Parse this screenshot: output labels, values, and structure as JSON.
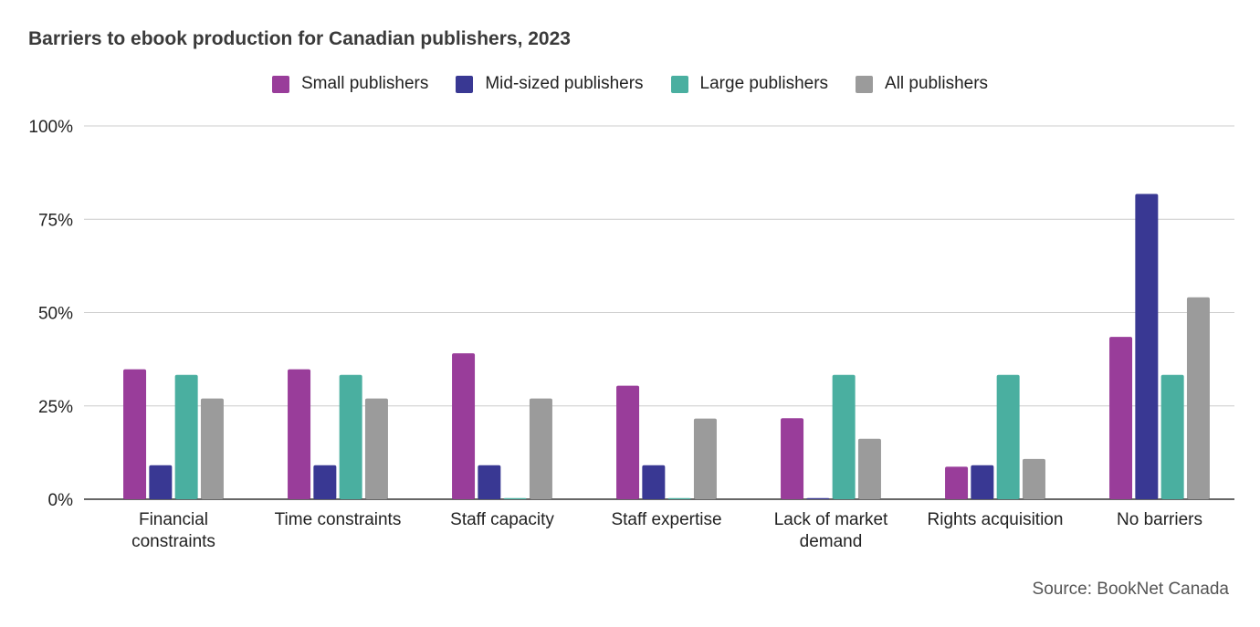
{
  "chart_data": {
    "type": "bar",
    "title": "Barriers to ebook production for Canadian publishers, 2023",
    "categories": [
      [
        "Financial",
        "constraints"
      ],
      [
        "Time constraints"
      ],
      [
        "Staff capacity"
      ],
      [
        "Staff expertise"
      ],
      [
        "Lack of market",
        "demand"
      ],
      [
        "Rights acquisition"
      ],
      [
        "No barriers"
      ]
    ],
    "series": [
      {
        "name": "Small publishers",
        "color": "#993d9a",
        "values": [
          34.8,
          34.8,
          39.1,
          30.4,
          21.7,
          8.7,
          43.5
        ]
      },
      {
        "name": "Mid-sized publishers",
        "color": "#393893",
        "values": [
          9.1,
          9.1,
          9.1,
          9.1,
          0.3,
          9.1,
          81.8
        ]
      },
      {
        "name": "Large publishers",
        "color": "#4aafa0",
        "values": [
          33.3,
          33.3,
          0.3,
          0.3,
          33.3,
          33.3,
          33.3
        ]
      },
      {
        "name": "All publishers",
        "color": "#9b9b9b",
        "values": [
          27.0,
          27.0,
          27.0,
          21.6,
          16.2,
          10.8,
          54.1
        ]
      }
    ],
    "y_ticks": [
      "0%",
      "25%",
      "50%",
      "75%",
      "100%"
    ],
    "ylim": [
      0,
      100
    ],
    "grid": true,
    "legend_position": "top-center",
    "source": "Source: BookNet Canada"
  }
}
